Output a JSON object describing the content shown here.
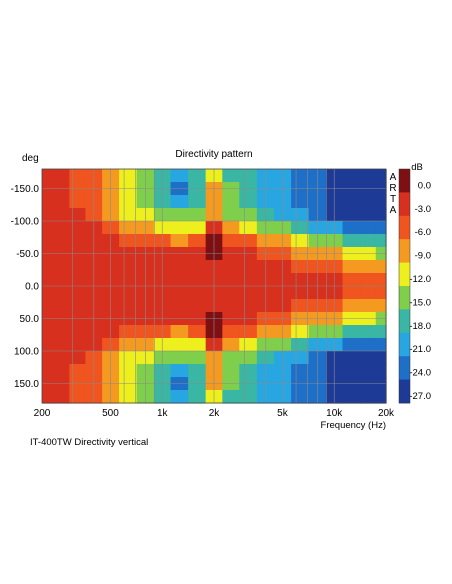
{
  "chart_data": {
    "type": "heatmap",
    "title": "Directivity pattern",
    "ylabel": "deg",
    "xlabel": "Frequency (Hz)",
    "caption": "IT-400TW Directivity vertical",
    "x_scale": "log",
    "xlim": [
      200,
      20000
    ],
    "ylim": [
      -180,
      180
    ],
    "y_reversed": true,
    "x_ticks": [
      200,
      500,
      1000,
      2000,
      5000,
      10000,
      20000
    ],
    "x_tick_labels": [
      "200",
      "500",
      "1k",
      "2k",
      "5k",
      "10k",
      "20k"
    ],
    "y_ticks": [
      -150,
      -100,
      -50,
      0,
      50,
      100,
      150
    ],
    "y_tick_labels": [
      "-150.0",
      "-100.0",
      "-50.0",
      "0.0",
      "50.0",
      "100.0",
      "150.0"
    ],
    "grid": true,
    "colorbar": {
      "unit": "dB",
      "brand": [
        "A",
        "R",
        "T",
        "A"
      ],
      "levels": [
        0.0,
        -3.0,
        -6.0,
        -9.0,
        -12.0,
        -15.0,
        -18.0,
        -21.0,
        -24.0,
        -27.0
      ],
      "labels": [
        "0.0",
        "-3.0",
        "-6.0",
        "-9.0",
        "-12.0",
        "-15.0",
        "-18.0",
        "-21.0",
        "-24.0",
        "-27.0"
      ],
      "colors": [
        "#7e0f12",
        "#d8301e",
        "#f0541f",
        "#f59a21",
        "#eef01e",
        "#7fce4c",
        "#39b6a4",
        "#28a6e2",
        "#1e6fc8",
        "#1d3b96"
      ]
    },
    "rows_deg": [
      -170,
      -150,
      -130,
      -110,
      -90,
      -70,
      -50,
      -30,
      -10,
      10,
      30,
      50,
      70,
      90,
      110,
      130,
      150,
      170
    ],
    "cols_hz": [
      210,
      260,
      320,
      400,
      500,
      630,
      800,
      1000,
      1250,
      1600,
      2000,
      2500,
      3150,
      4000,
      5000,
      6300,
      8000,
      10000,
      12500,
      16000,
      19000
    ],
    "values_db": [
      [
        -4,
        -4,
        -5,
        -7,
        -10,
        -13,
        -15,
        -17,
        -20,
        -18,
        -13,
        -17,
        -19,
        -21,
        -21,
        -23,
        -24,
        -26,
        -26,
        -27,
        -27
      ],
      [
        -4,
        -4,
        -5,
        -7,
        -10,
        -13,
        -16,
        -19,
        -24,
        -17,
        -10,
        -16,
        -19,
        -21,
        -22,
        -23,
        -25,
        -26,
        -27,
        -27,
        -27
      ],
      [
        -3,
        -4,
        -5,
        -6,
        -9,
        -12,
        -15,
        -17,
        -21,
        -17,
        -9,
        -15,
        -18,
        -20,
        -22,
        -23,
        -25,
        -26,
        -27,
        -27,
        -27
      ],
      [
        -3,
        -3,
        -4,
        -5,
        -8,
        -11,
        -13,
        -14,
        -16,
        -15,
        -8,
        -14,
        -16,
        -18,
        -20,
        -22,
        -24,
        -26,
        -26,
        -27,
        -27
      ],
      [
        -3,
        -3,
        -3,
        -4,
        -6,
        -8,
        -10,
        -11,
        -12,
        -11,
        -3,
        -8,
        -12,
        -14,
        -16,
        -18,
        -20,
        -22,
        -23,
        -24,
        -25
      ],
      [
        -2,
        -2,
        -2,
        -3,
        -4,
        -5,
        -6,
        -7,
        -8,
        -6,
        -1,
        -5,
        -7,
        -8,
        -10,
        -12,
        -14,
        -15,
        -17,
        -18,
        -19
      ],
      [
        -2,
        -2,
        -2,
        -2,
        -2,
        -3,
        -3,
        -3,
        -4,
        -3,
        0,
        -3,
        -4,
        -5,
        -6,
        -8,
        -9,
        -10,
        -11,
        -12,
        -14
      ],
      [
        -2,
        -2,
        -2,
        -2,
        -2,
        -2,
        -2,
        -2,
        -3,
        -2,
        -2,
        -3,
        -3,
        -4,
        -4,
        -5,
        -6,
        -7,
        -8,
        -9,
        -10
      ],
      [
        -2,
        -2,
        -2,
        -2,
        -2,
        -2,
        -2,
        -2,
        -2,
        -2,
        -2,
        -2,
        -2,
        -2,
        -3,
        -3,
        -4,
        -4,
        -5,
        -6,
        -7
      ],
      [
        -2,
        -2,
        -2,
        -2,
        -2,
        -2,
        -2,
        -2,
        -2,
        -2,
        -2,
        -2,
        -2,
        -2,
        -3,
        -3,
        -4,
        -4,
        -5,
        -6,
        -7
      ],
      [
        -2,
        -2,
        -2,
        -2,
        -2,
        -2,
        -2,
        -2,
        -3,
        -2,
        -2,
        -3,
        -3,
        -4,
        -4,
        -5,
        -6,
        -7,
        -8,
        -9,
        -10
      ],
      [
        -2,
        -2,
        -2,
        -2,
        -2,
        -3,
        -3,
        -3,
        -4,
        -3,
        0,
        -3,
        -4,
        -5,
        -6,
        -8,
        -9,
        -10,
        -11,
        -12,
        -14
      ],
      [
        -2,
        -2,
        -2,
        -3,
        -4,
        -5,
        -6,
        -7,
        -8,
        -6,
        -1,
        -5,
        -7,
        -8,
        -10,
        -12,
        -14,
        -15,
        -17,
        -18,
        -19
      ],
      [
        -3,
        -3,
        -3,
        -4,
        -6,
        -8,
        -10,
        -11,
        -12,
        -11,
        -3,
        -8,
        -12,
        -14,
        -16,
        -18,
        -20,
        -22,
        -23,
        -24,
        -25
      ],
      [
        -3,
        -3,
        -4,
        -5,
        -8,
        -11,
        -13,
        -14,
        -16,
        -15,
        -8,
        -14,
        -16,
        -18,
        -20,
        -22,
        -24,
        -26,
        -26,
        -27,
        -27
      ],
      [
        -3,
        -4,
        -5,
        -6,
        -9,
        -12,
        -15,
        -17,
        -21,
        -17,
        -9,
        -15,
        -18,
        -20,
        -22,
        -23,
        -25,
        -26,
        -27,
        -27,
        -27
      ],
      [
        -4,
        -4,
        -5,
        -7,
        -10,
        -13,
        -16,
        -19,
        -24,
        -17,
        -10,
        -16,
        -19,
        -21,
        -22,
        -23,
        -25,
        -26,
        -27,
        -27,
        -27
      ],
      [
        -4,
        -4,
        -5,
        -7,
        -10,
        -13,
        -15,
        -17,
        -20,
        -18,
        -13,
        -17,
        -19,
        -21,
        -21,
        -23,
        -24,
        -26,
        -26,
        -27,
        -27
      ]
    ]
  }
}
